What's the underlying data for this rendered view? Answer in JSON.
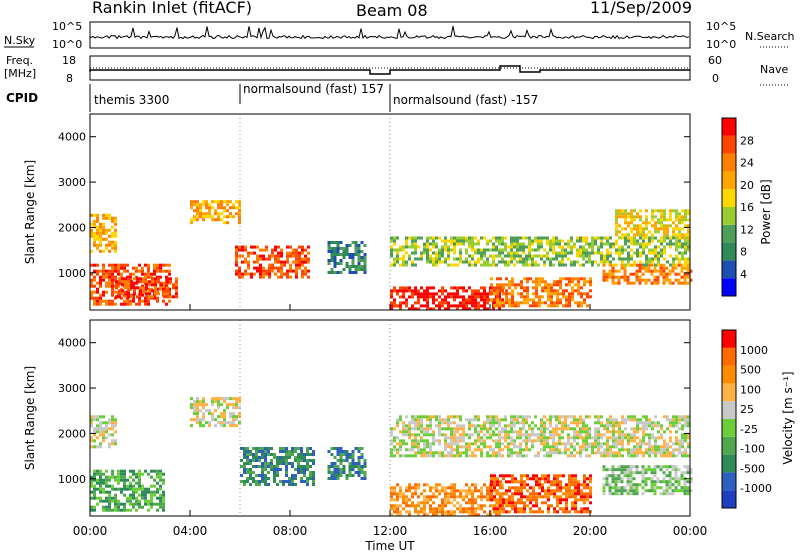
{
  "header": {
    "station": "Rankin Inlet (fitACF)",
    "beam": "Beam 08",
    "date": "11/Sep/2009"
  },
  "top_panels": {
    "nsky_label": "N.Sky",
    "nsky_ticks": [
      "10^5",
      "10^0"
    ],
    "nsearch_label": "N.Search",
    "nsearch_ticks": [
      "10^5",
      "10^0"
    ],
    "freq_label_line1": "Freq.",
    "freq_label_line2": "[MHz]",
    "freq_ticks": [
      "18",
      "8"
    ],
    "nave_label": "Nave",
    "nave_ticks": [
      "60",
      "0"
    ],
    "cpid_label": "CPID",
    "cpid_segments": [
      {
        "label": "themis 3300",
        "start_hour": 0
      },
      {
        "label": "normalsound (fast) 157",
        "start_hour": 6
      },
      {
        "label": "normalsound (fast) -157",
        "start_hour": 12
      }
    ]
  },
  "chart_data": [
    {
      "type": "heatmap",
      "title": "",
      "ylabel": "Slant Range [km]",
      "xlabel": "Time UT",
      "x_ticks": [
        "00:00",
        "04:00",
        "08:00",
        "12:00",
        "16:00",
        "20:00",
        "00:00"
      ],
      "y_ticks": [
        "1000",
        "2000",
        "3000",
        "4000"
      ],
      "xlim": [
        0,
        24
      ],
      "ylim": [
        180,
        4500
      ],
      "colorbar": {
        "label": "Power [dB]",
        "ticks": [
          "4",
          "8",
          "12",
          "16",
          "20",
          "24",
          "28"
        ],
        "colors": [
          "#0000ff",
          "#1e4fb0",
          "#2e8b57",
          "#4f9e5a",
          "#9acd32",
          "#ffd700",
          "#ffa500",
          "#ff7f00",
          "#ff4500",
          "#ff0000"
        ]
      },
      "regions": [
        {
          "t0": 0.0,
          "t1": 3.2,
          "r0": 300,
          "r1": 1200,
          "level": 8
        },
        {
          "t0": 0.0,
          "t1": 1.0,
          "r0": 1500,
          "r1": 2300,
          "level": 6
        },
        {
          "t0": 1.0,
          "t1": 3.5,
          "r0": 500,
          "r1": 900,
          "level": 8
        },
        {
          "t0": 5.8,
          "t1": 8.8,
          "r0": 900,
          "r1": 1600,
          "level": 8
        },
        {
          "t0": 4.0,
          "t1": 6.0,
          "r0": 2100,
          "r1": 2600,
          "level": 6
        },
        {
          "t0": 12.0,
          "t1": 16.5,
          "r0": 200,
          "r1": 700,
          "level": 9
        },
        {
          "t0": 16.0,
          "t1": 20.0,
          "r0": 300,
          "r1": 900,
          "level": 7
        },
        {
          "t0": 20.5,
          "t1": 24.0,
          "r0": 800,
          "r1": 1200,
          "level": 7
        },
        {
          "t0": 21.0,
          "t1": 24.0,
          "r0": 1800,
          "r1": 2400,
          "level": 5
        },
        {
          "t0": 12.0,
          "t1": 24.0,
          "r0": 1200,
          "r1": 1800,
          "level": 4
        },
        {
          "t0": 9.5,
          "t1": 11.0,
          "r0": 1000,
          "r1": 1700,
          "level": 2
        }
      ]
    },
    {
      "type": "heatmap",
      "title": "",
      "ylabel": "Slant Range [km]",
      "xlabel": "Time UT",
      "x_ticks": [
        "00:00",
        "04:00",
        "08:00",
        "12:00",
        "16:00",
        "20:00",
        "00:00"
      ],
      "y_ticks": [
        "1000",
        "2000",
        "3000",
        "4000"
      ],
      "xlim": [
        0,
        24
      ],
      "ylim": [
        180,
        4500
      ],
      "colorbar": {
        "label": "Velocity [m s⁻¹]",
        "ticks": [
          "1000",
          "500",
          "100",
          "25",
          "-25",
          "-100",
          "-500",
          "-1000"
        ],
        "colors": [
          "#1e3fbf",
          "#2e5fbf",
          "#2e8b57",
          "#4fa84f",
          "#6ccf3a",
          "#c8c8c8",
          "#ffb347",
          "#ff8c00",
          "#ff6a00",
          "#ff0000"
        ]
      },
      "regions": [
        {
          "t0": 0.0,
          "t1": 3.0,
          "r0": 300,
          "r1": 1200,
          "level": 3
        },
        {
          "t0": 0.0,
          "t1": 1.0,
          "r0": 1700,
          "r1": 2400,
          "level": 5
        },
        {
          "t0": 4.0,
          "t1": 6.0,
          "r0": 2200,
          "r1": 2800,
          "level": 5
        },
        {
          "t0": 6.0,
          "t1": 9.0,
          "r0": 900,
          "r1": 1700,
          "level": 2
        },
        {
          "t0": 9.5,
          "t1": 11.0,
          "r0": 1000,
          "r1": 1700,
          "level": 2
        },
        {
          "t0": 12.0,
          "t1": 16.5,
          "r0": 200,
          "r1": 900,
          "level": 7
        },
        {
          "t0": 16.0,
          "t1": 20.0,
          "r0": 300,
          "r1": 1100,
          "level": 8
        },
        {
          "t0": 12.0,
          "t1": 24.0,
          "r0": 1500,
          "r1": 2400,
          "level": 5
        },
        {
          "t0": 20.5,
          "t1": 24.0,
          "r0": 700,
          "r1": 1300,
          "level": 4
        }
      ]
    }
  ]
}
